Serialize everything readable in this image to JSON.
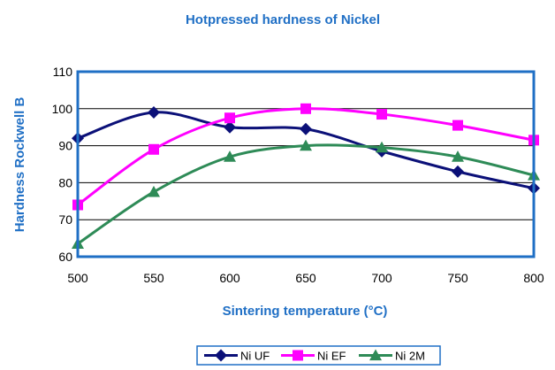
{
  "chart_data": {
    "type": "line",
    "title": "Hotpressed hardness of Nickel",
    "xlabel": "Sintering temperature (°C)",
    "ylabel": "Hardness Rockwell B",
    "x": [
      500,
      550,
      600,
      650,
      700,
      750,
      800
    ],
    "xticks": [
      "500",
      "550",
      "600",
      "650",
      "700",
      "750",
      "800"
    ],
    "yticks": [
      "60",
      "70",
      "80",
      "90",
      "100",
      "110"
    ],
    "xlim": [
      500,
      800
    ],
    "ylim": [
      60,
      110
    ],
    "grid": "horizontal",
    "legend_position": "bottom",
    "smoothed": true,
    "series": [
      {
        "name": "Ni UF",
        "color": "#0B1078",
        "marker": "diamond",
        "values": [
          92,
          99,
          95,
          94.5,
          88.5,
          83,
          78.5
        ]
      },
      {
        "name": "Ni EF",
        "color": "#FF00FF",
        "marker": "square",
        "values": [
          74,
          89,
          97.5,
          100,
          98.5,
          95.5,
          91.5
        ]
      },
      {
        "name": "Ni 2M",
        "color": "#2E8B57",
        "marker": "triangle",
        "values": [
          63.5,
          77.5,
          87,
          90,
          89.5,
          87,
          82
        ]
      }
    ]
  }
}
